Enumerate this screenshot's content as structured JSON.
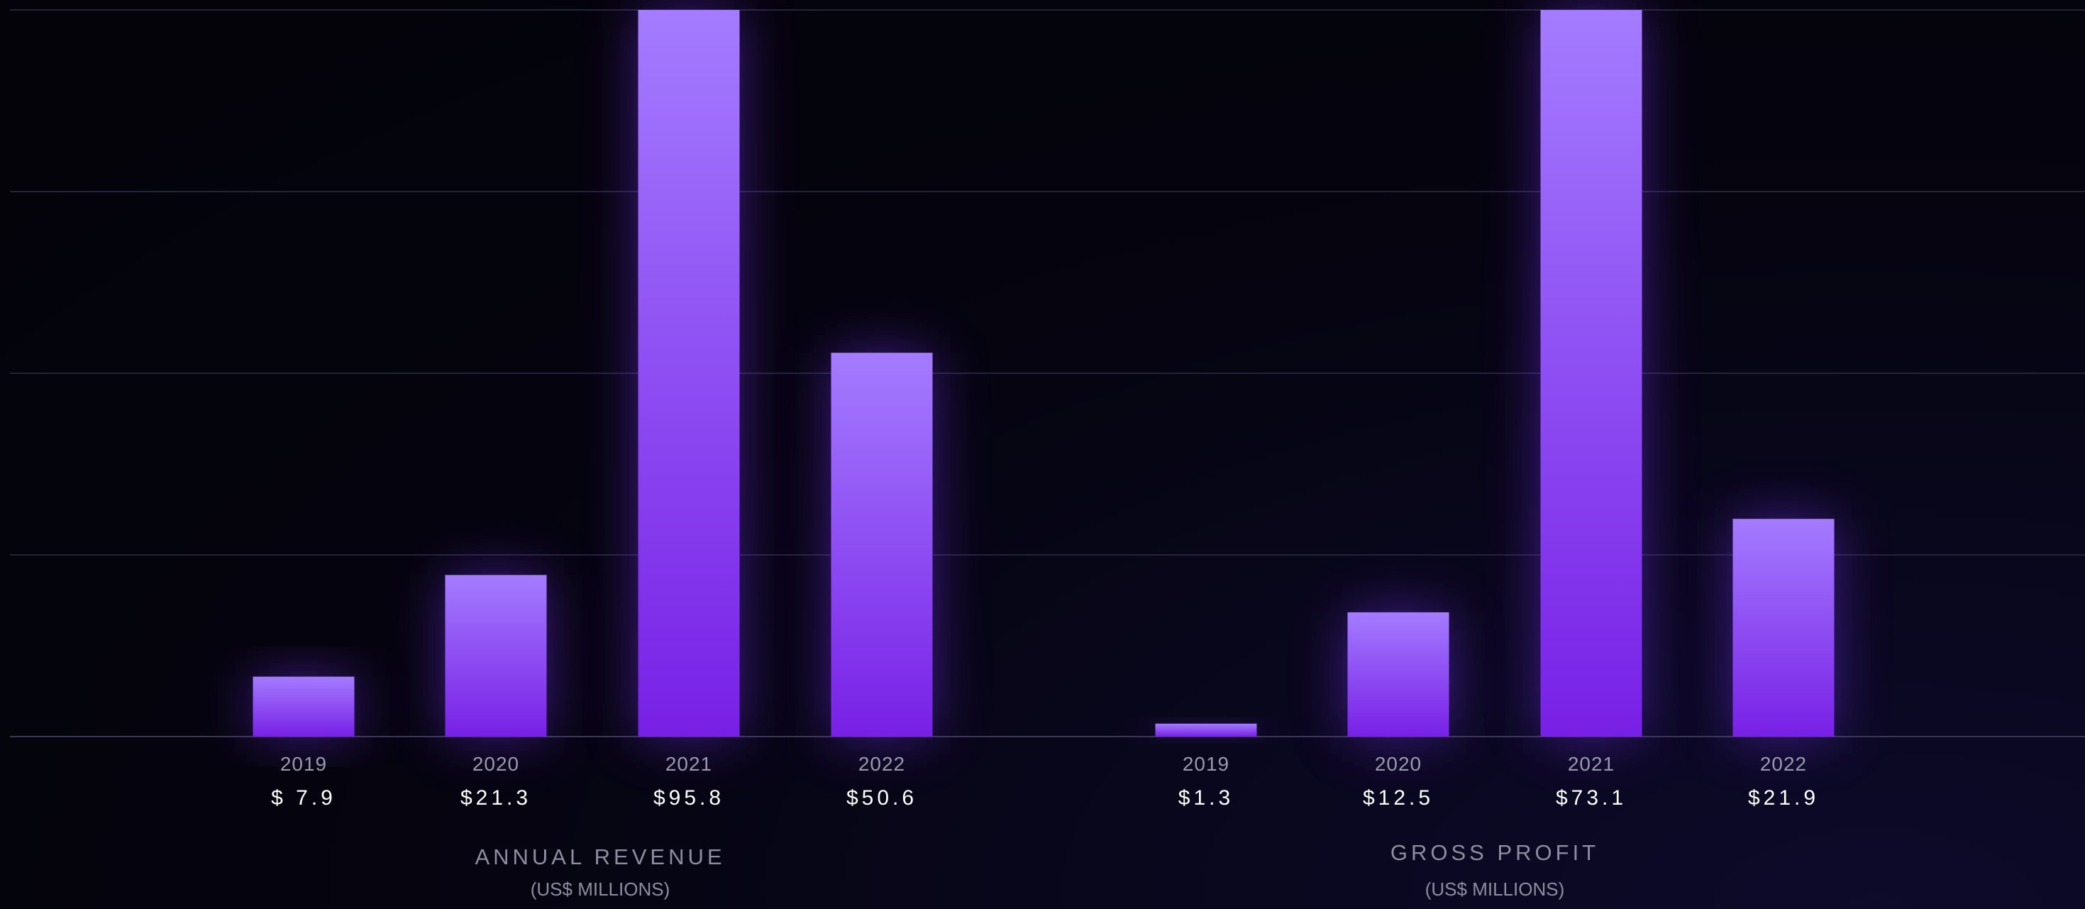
{
  "chart_data": [
    {
      "type": "bar",
      "title": "ANNUAL REVENUE",
      "subtitle": "(US$ MILLIONS)",
      "categories": [
        "2019",
        "2020",
        "2021",
        "2022"
      ],
      "value_labels": [
        "$ 7.9",
        "$21.3",
        "$95.8",
        "$50.6"
      ],
      "values": [
        7.9,
        21.3,
        95.8,
        50.6
      ],
      "ylim": [
        0,
        95.8
      ],
      "grid": true,
      "bar_color_top": "#a47cff",
      "bar_color_bottom": "#7820e6"
    },
    {
      "type": "bar",
      "title": "GROSS PROFIT",
      "subtitle": "(US$ MILLIONS)",
      "categories": [
        "2019",
        "2020",
        "2021",
        "2022"
      ],
      "value_labels": [
        "$1.3",
        "$12.5",
        "$73.1",
        "$21.9"
      ],
      "values": [
        1.3,
        12.5,
        73.1,
        21.9
      ],
      "ylim": [
        0,
        73.1
      ],
      "grid": true,
      "bar_color_top": "#a47cff",
      "bar_color_bottom": "#7820e6"
    }
  ],
  "colors": {
    "background": "#05040f",
    "gridline": "#25233a",
    "baseline": "#3a3850",
    "year_label": "#9a98ad",
    "value_label": "#ffffff",
    "title": "#8e8ca0",
    "subtitle": "#8e8ca0"
  }
}
